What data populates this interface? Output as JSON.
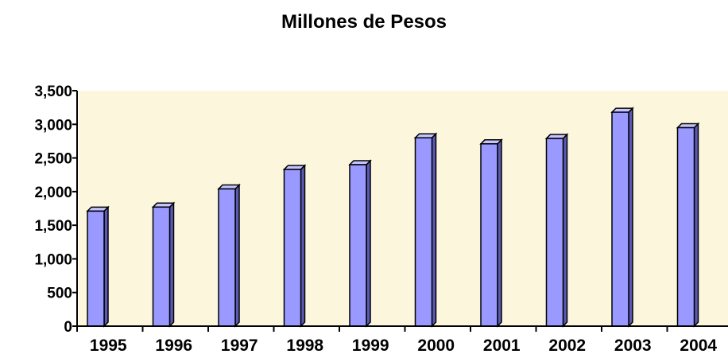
{
  "chart_data": {
    "type": "bar",
    "title": "Millones de Pesos",
    "xlabel": "",
    "ylabel": "",
    "categories": [
      "1995",
      "1996",
      "1997",
      "1998",
      "1999",
      "2000",
      "2001",
      "2002",
      "2003",
      "2004"
    ],
    "values": [
      1710,
      1770,
      2040,
      2330,
      2400,
      2800,
      2710,
      2790,
      3180,
      2950
    ],
    "ylim": [
      0,
      3500
    ],
    "yticks": [
      0,
      500,
      1000,
      1500,
      2000,
      2500,
      3000,
      3500
    ],
    "ytick_labels": [
      "0",
      "500",
      "1,000",
      "1,500",
      "2,000",
      "2,500",
      "3,000",
      "3,500"
    ],
    "grid": false,
    "colors": {
      "bar_front": "#9999ff",
      "bar_side": "#5a5ab4",
      "bar_top": "#c4c4ff",
      "bar_outline": "#000000",
      "plot_background": "#fcf6dc"
    }
  }
}
